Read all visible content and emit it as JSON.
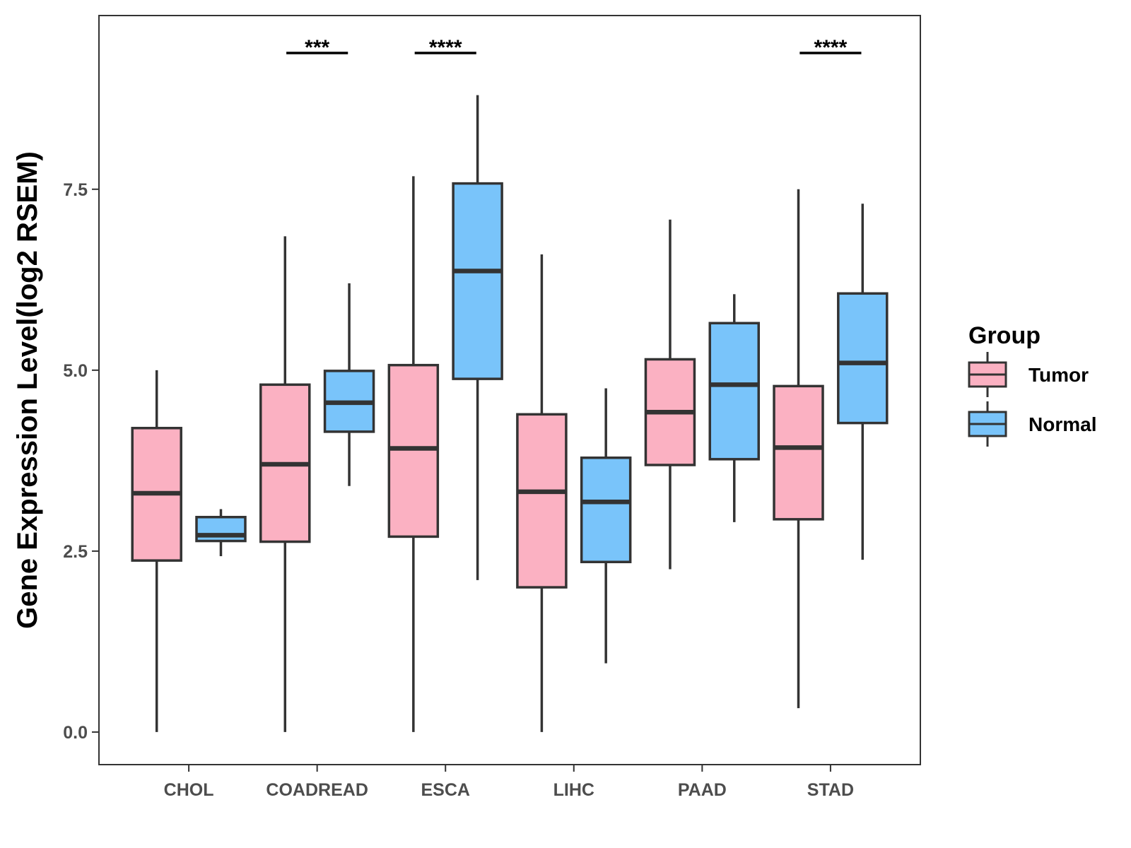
{
  "chart_data": {
    "type": "boxplot",
    "title": "",
    "xlabel": "",
    "ylabel": "Gene Expression Level(log2 RSEM)",
    "ylim": [
      -0.45,
      9.9
    ],
    "yticks": [
      {
        "value": 0.0,
        "label": "0.0"
      },
      {
        "value": 2.5,
        "label": "2.5"
      },
      {
        "value": 5.0,
        "label": "5.0"
      },
      {
        "value": 7.5,
        "label": "7.5"
      }
    ],
    "categories": [
      "CHOL",
      "COADREAD",
      "ESCA",
      "LIHC",
      "PAAD",
      "STAD"
    ],
    "legend": {
      "title": "Group",
      "position": "right",
      "entries": [
        {
          "name": "Tumor",
          "color": "#FBB1C2"
        },
        {
          "name": "Normal",
          "color": "#79C4FA"
        }
      ]
    },
    "series": [
      {
        "name": "Tumor",
        "color": "#FBB1C2",
        "boxes": [
          {
            "category": "CHOL",
            "min": 0.0,
            "q1": 2.37,
            "median": 3.3,
            "q3": 4.2,
            "max": 5.0
          },
          {
            "category": "COADREAD",
            "min": 0.0,
            "q1": 2.63,
            "median": 3.7,
            "q3": 4.8,
            "max": 6.85
          },
          {
            "category": "ESCA",
            "min": 0.0,
            "q1": 2.7,
            "median": 3.92,
            "q3": 5.07,
            "max": 7.68
          },
          {
            "category": "LIHC",
            "min": 0.0,
            "q1": 2.0,
            "median": 3.32,
            "q3": 4.39,
            "max": 6.6
          },
          {
            "category": "PAAD",
            "min": 2.25,
            "q1": 3.69,
            "median": 4.42,
            "q3": 5.15,
            "max": 7.08
          },
          {
            "category": "STAD",
            "min": 0.33,
            "q1": 2.94,
            "median": 3.93,
            "q3": 4.78,
            "max": 7.5
          }
        ]
      },
      {
        "name": "Normal",
        "color": "#79C4FA",
        "boxes": [
          {
            "category": "CHOL",
            "min": 2.43,
            "q1": 2.64,
            "median": 2.72,
            "q3": 2.97,
            "max": 3.08
          },
          {
            "category": "COADREAD",
            "min": 3.4,
            "q1": 4.15,
            "median": 4.55,
            "q3": 4.99,
            "max": 6.2
          },
          {
            "category": "ESCA",
            "min": 2.1,
            "q1": 4.88,
            "median": 6.37,
            "q3": 7.58,
            "max": 8.8
          },
          {
            "category": "LIHC",
            "min": 0.95,
            "q1": 2.35,
            "median": 3.18,
            "q3": 3.79,
            "max": 4.75
          },
          {
            "category": "PAAD",
            "min": 2.9,
            "q1": 3.77,
            "median": 4.8,
            "q3": 5.65,
            "max": 6.05
          },
          {
            "category": "STAD",
            "min": 2.38,
            "q1": 4.27,
            "median": 5.1,
            "q3": 6.06,
            "max": 7.3
          }
        ]
      }
    ],
    "annotations": [
      {
        "category": "COADREAD",
        "text": "***"
      },
      {
        "category": "ESCA",
        "text": "****"
      },
      {
        "category": "STAD",
        "text": "****"
      }
    ]
  }
}
